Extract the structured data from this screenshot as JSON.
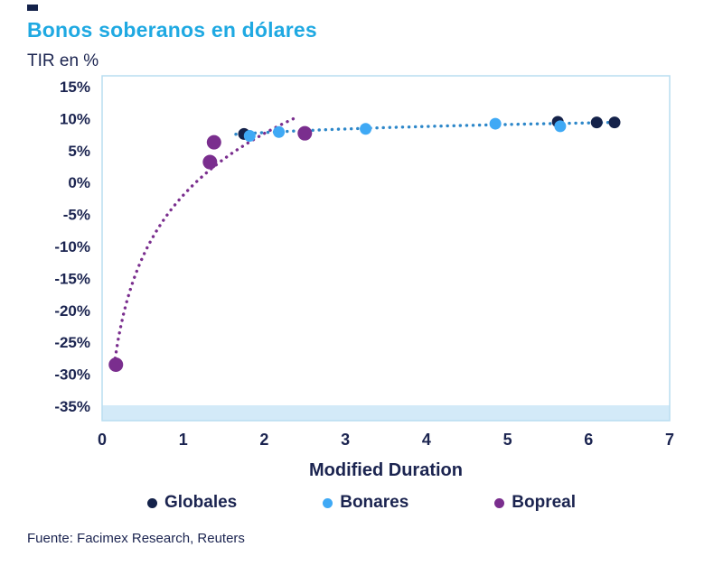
{
  "chart": {
    "title": "Bonos soberanos en dólares",
    "ylabel": "TIR en %",
    "xlabel": "Modified Duration",
    "source": "Fuente: Facimex Research, Reuters"
  },
  "chart_data": {
    "type": "scatter",
    "title": "Bonos soberanos en dólares",
    "xlabel": "Modified Duration",
    "ylabel": "TIR en %",
    "xlim": [
      0,
      7
    ],
    "ylim": [
      -35,
      15
    ],
    "xticks": [
      0,
      1,
      2,
      3,
      4,
      5,
      6,
      7
    ],
    "yticks": [
      15,
      10,
      5,
      0,
      -5,
      -10,
      -15,
      -20,
      -25,
      -30,
      -35
    ],
    "ytick_suffix": "%",
    "grid": false,
    "legend_position": "bottom",
    "colors": {
      "title_accent": "#1fa9e2",
      "text_navy": "#1b2450",
      "plot_border": "#b9ddf1",
      "plot_strip": "#d3eaf8"
    },
    "series": [
      {
        "name": "Globales",
        "color": "#14224a",
        "radius": 6.5,
        "points": [
          [
            1.75,
            7.6
          ],
          [
            5.62,
            9.5
          ],
          [
            6.1,
            9.4
          ],
          [
            6.32,
            9.4
          ]
        ]
      },
      {
        "name": "Bonares",
        "color": "#3fa9f5",
        "radius": 6.5,
        "points": [
          [
            1.82,
            7.3
          ],
          [
            2.18,
            7.9
          ],
          [
            3.25,
            8.4
          ],
          [
            4.85,
            9.2
          ],
          [
            5.65,
            8.8
          ]
        ]
      },
      {
        "name": "Bopreal",
        "color": "#7a2e8e",
        "radius": 8,
        "points": [
          [
            0.17,
            -28.5
          ],
          [
            1.33,
            3.2
          ],
          [
            1.38,
            6.3
          ],
          [
            2.5,
            7.7
          ]
        ]
      }
    ],
    "trendlines": [
      {
        "series": "Bopreal",
        "type": "log",
        "a": -2.0,
        "b": 13.96,
        "x_range": [
          0.15,
          2.42
        ],
        "color": "#7a2e8e"
      },
      {
        "series": "Bonares-Globales",
        "type": "log",
        "a": 6.87,
        "b": 1.374,
        "x_range": [
          1.65,
          6.35
        ],
        "color": "#2d87c9"
      }
    ]
  }
}
